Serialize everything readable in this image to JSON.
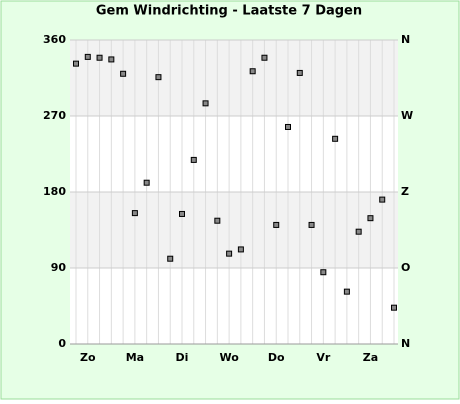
{
  "chart_data": {
    "type": "scatter",
    "title": "Gem Windrichting - Laatste 7 Dagen",
    "categories": [
      null,
      "Zo",
      null,
      null,
      null,
      "Ma",
      null,
      null,
      null,
      "Di",
      null,
      null,
      null,
      "Wo",
      null,
      null,
      null,
      "Do",
      null,
      null,
      null,
      "Vr",
      null,
      null,
      null,
      "Za",
      null,
      null
    ],
    "values": [
      332,
      340,
      339,
      337,
      320,
      155,
      191,
      316,
      101,
      154,
      218,
      285,
      146,
      107,
      112,
      323,
      339,
      141,
      257,
      321,
      141,
      85,
      243,
      62,
      133,
      149,
      171,
      43
    ],
    "color": "#888888",
    "ylim": [
      0,
      360
    ],
    "yticks": [
      0,
      90,
      180,
      270,
      360
    ],
    "y2lim": [
      0,
      360
    ],
    "y2ticks": [
      {
        "value": 0,
        "label": "N"
      },
      {
        "value": 90,
        "label": "O"
      },
      {
        "value": 180,
        "label": "Z"
      },
      {
        "value": 270,
        "label": "W"
      },
      {
        "value": 360,
        "label": "N"
      }
    ],
    "grid": true
  }
}
